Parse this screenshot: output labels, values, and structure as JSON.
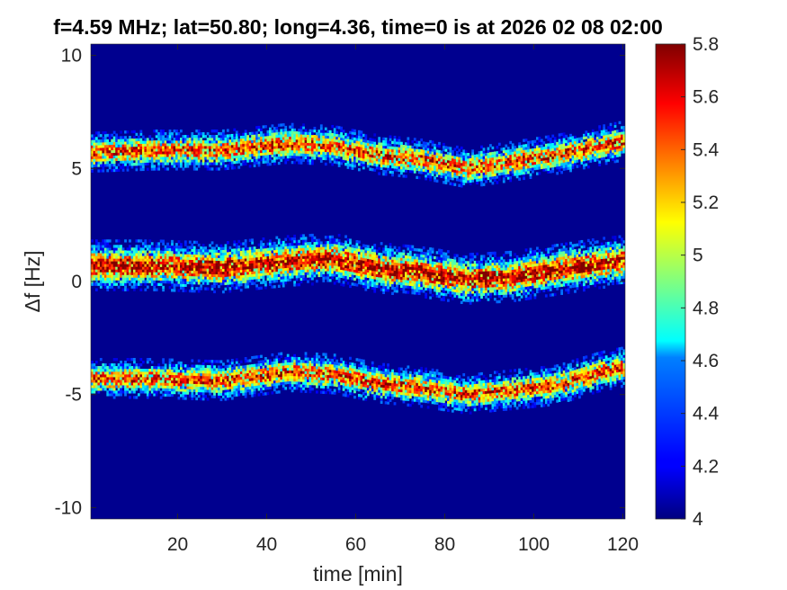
{
  "chart_data": {
    "type": "heatmap",
    "title": "f=4.59 MHz;  lat=50.80; long=4.36, time=0 is at 2026 02 08 02:00",
    "xlabel": "time [min]",
    "ylabel": "Δf [Hz]",
    "xlim": [
      0.5,
      120.5
    ],
    "ylim": [
      -10.5,
      10.5
    ],
    "xticks": [
      20,
      40,
      60,
      80,
      100,
      120
    ],
    "xtick_labels": [
      "20",
      "40",
      "60",
      "80",
      "100",
      "120"
    ],
    "yticks": [
      -10,
      -5,
      0,
      5,
      10
    ],
    "ytick_labels": [
      "-10",
      "-5",
      "0",
      "5",
      "10"
    ],
    "colormap": "jet",
    "clim": [
      4.0,
      5.8
    ],
    "colorbar_ticks": [
      4,
      4.2,
      4.4,
      4.6,
      4.8,
      5,
      5.2,
      5.4,
      5.6,
      5.8
    ],
    "colorbar_tick_labels": [
      "4",
      "4.2",
      "4.4",
      "4.6",
      "4.8",
      "5",
      "5.2",
      "5.4",
      "5.6",
      "5.8"
    ],
    "background_value": 4.0,
    "bands": [
      {
        "time_min": [
          0,
          15,
          30,
          45,
          55,
          65,
          75,
          85,
          95,
          105,
          115,
          120
        ],
        "center_hz": [
          5.7,
          5.8,
          5.8,
          6.1,
          6.0,
          5.6,
          5.4,
          5.0,
          5.3,
          5.6,
          6.0,
          6.2
        ],
        "half_width_hz": 0.55,
        "peak_value": 5.6
      },
      {
        "time_min": [
          0,
          15,
          30,
          45,
          55,
          65,
          75,
          85,
          95,
          105,
          115,
          120
        ],
        "center_hz": [
          0.7,
          0.7,
          0.6,
          0.9,
          1.0,
          0.6,
          0.4,
          0.1,
          0.2,
          0.5,
          0.8,
          0.9
        ],
        "half_width_hz": 0.7,
        "peak_value": 5.8
      },
      {
        "time_min": [
          0,
          15,
          30,
          45,
          55,
          65,
          75,
          85,
          95,
          105,
          115,
          120
        ],
        "center_hz": [
          -4.3,
          -4.3,
          -4.4,
          -4.0,
          -4.1,
          -4.5,
          -4.7,
          -5.0,
          -4.8,
          -4.6,
          -4.0,
          -3.8
        ],
        "half_width_hz": 0.55,
        "peak_value": 5.6
      }
    ]
  }
}
